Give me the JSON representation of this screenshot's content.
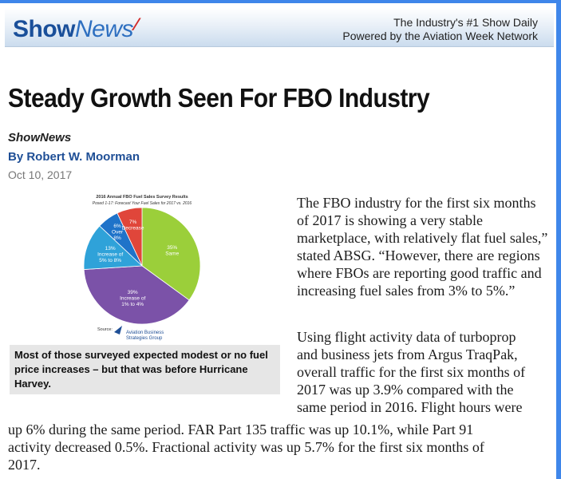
{
  "banner": {
    "logo_show": "Show",
    "logo_news": "News",
    "tagline_line1": "The Industry's #1 Show Daily",
    "tagline_line2": "Powered by the Aviation Week Network"
  },
  "article": {
    "headline": "Steady Growth Seen For FBO Industry",
    "source": "ShowNews",
    "byline": "By Robert W. Moorman",
    "date": "Oct 10, 2017",
    "paragraph1": "The FBO industry for the first six months of 2017 is showing a very stable marketplace, with relatively flat fuel sales,” stated ABSG. “However, there are regions where FBOs are reporting good traffic and increasing fuel sales from 3% to 5%.”",
    "paragraph2_lines": [
      "Using flight activity data of turboprop",
      "and business jets from Argus TraqPak,",
      "overall traffic for the first six months of",
      "2017 was up 3.9% compared with the",
      "same period in 2016. Flight hours were",
      "up 6% during the same period. FAR Part 135 traffic was up 10.1%, while Part 91",
      "activity decreased 0.5%. Fractional activity was up 5.7% for the first six months of",
      "2017."
    ]
  },
  "figure": {
    "caption": "Most of those surveyed expected modest or no fuel price increases – but that was before Hurricane Harvey.",
    "chart_title_line1": "2016 Annual FBO Fuel Sales Survey Results",
    "chart_title_line2": "Posed 1-17: Forecast Your Fuel Sales for 2017 vs. 2016",
    "source_label": "Source:",
    "source_org_line1": "Aviation Business",
    "source_org_line2": "Strategies Group"
  },
  "chart_data": {
    "type": "pie",
    "title": "2016 Annual FBO Fuel Sales Survey Results",
    "subtitle": "Posed 1-17: Forecast Your Fuel Sales for 2017 vs. 2016",
    "slices": [
      {
        "label_lines": [
          "35%",
          "Same"
        ],
        "value": 35,
        "color": "#9bcf3a"
      },
      {
        "label_lines": [
          "39%",
          "Increase of",
          "1% to 4%"
        ],
        "value": 39,
        "color": "#7b52a8"
      },
      {
        "label_lines": [
          "13%",
          "Increase of",
          "5% to 8%"
        ],
        "value": 13,
        "color": "#2fa2d9"
      },
      {
        "label_lines": [
          "6%",
          "Over",
          "8%"
        ],
        "value": 6,
        "color": "#1f73c9"
      },
      {
        "label_lines": [
          "7%",
          "Decrease"
        ],
        "value": 7,
        "color": "#e0463a"
      }
    ]
  }
}
